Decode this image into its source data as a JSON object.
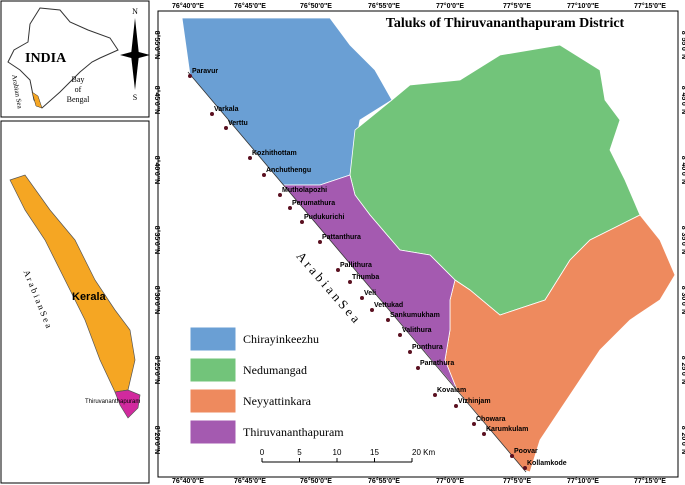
{
  "title": "Taluks of Thiruvananthapuram District",
  "legend": [
    {
      "name": "Chirayinkeezhu",
      "color": "#6a9fd4"
    },
    {
      "name": "Nedumangad",
      "color": "#72c47a"
    },
    {
      "name": "Neyyattinkara",
      "color": "#ee8a5e"
    },
    {
      "name": "Thiruvananthapuram",
      "color": "#a45ab0"
    }
  ],
  "places": [
    "Paravur",
    "Varkala",
    "Verttu",
    "Kozhithottam",
    "Anchuthengu",
    "Mutholapozhi",
    "Perumathura",
    "Pudukurichi",
    "Pattanthura",
    "Pallithura",
    "Thumba",
    "Veli",
    "Vettukad",
    "Sankumukham",
    "Valithura",
    "Punthura",
    "Panathura",
    "Kovalam",
    "Vizhinjam",
    "Chowara",
    "Karumkulam",
    "Poovar",
    "Kollamkode"
  ],
  "sea_label": "A r a b i a n  S e a",
  "lon_labels": [
    "76°40'0\"E",
    "76°45'0\"E",
    "76°50'0\"E",
    "76°55'0\"E",
    "77°0'0\"E",
    "77°5'0\"E",
    "77°10'0\"E",
    "77°15'0\"E"
  ],
  "lat_labels": [
    "8°55'0\"N",
    "8°45'0\"N",
    "8°40'0\"N",
    "8°35'0\"N",
    "8°30'0\"N",
    "8°25'0\"N",
    "8°20'0\"N"
  ],
  "scale_labels": [
    "0",
    "5",
    "10",
    "15",
    "20 Km"
  ],
  "india_inset": {
    "country": "INDIA",
    "sea": "Arabian Sea",
    "bay": [
      "Bay",
      "of",
      "Bengal"
    ]
  },
  "compass": {
    "north": "N",
    "south": "S"
  },
  "kerala_inset": {
    "state": "Kerala",
    "sea": "A r a b i a n  S e a",
    "district": "Thiruvananthapuram"
  }
}
